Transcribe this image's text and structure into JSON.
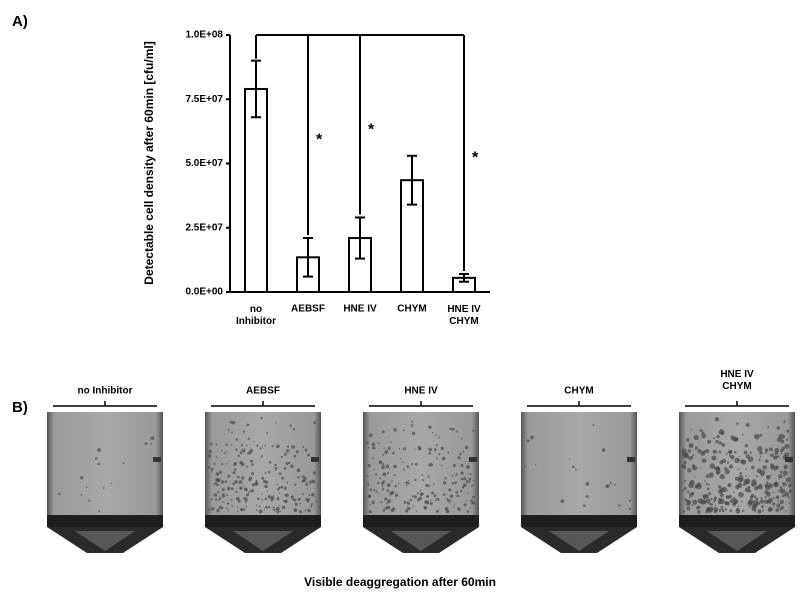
{
  "panel_labels": [
    "A)",
    "B)"
  ],
  "chart_data": {
    "type": "bar",
    "y_label": "Detectable cell density after 60min [cfu/ml]",
    "categories": [
      "no\nInhibitor",
      "AEBSF",
      "HNE IV",
      "CHYM",
      "HNE IV\nCHYM"
    ],
    "values": [
      79000000,
      13500000,
      21000000,
      43500000,
      5500000
    ],
    "errors": [
      11000000,
      7500000,
      8000000,
      9500000,
      1500000
    ],
    "color": "#ffffff",
    "ylim": [
      0,
      100000000
    ],
    "yticks": [
      {
        "value": 0,
        "label": "0.0E+00"
      },
      {
        "value": 25000000,
        "label": "2.5E+07"
      },
      {
        "value": 50000000,
        "label": "5.0E+07"
      },
      {
        "value": 75000000,
        "label": "7.5E+07"
      },
      {
        "value": 100000000,
        "label": "1.0E+08"
      }
    ],
    "annotations": [
      "*",
      "*",
      "*"
    ]
  },
  "photos": {
    "labels": [
      "no Inhibitor",
      "AEBSF",
      "HNE IV",
      "CHYM",
      "HNE IV\nCHYM"
    ],
    "caption": "Visible deaggregation after 60min"
  }
}
